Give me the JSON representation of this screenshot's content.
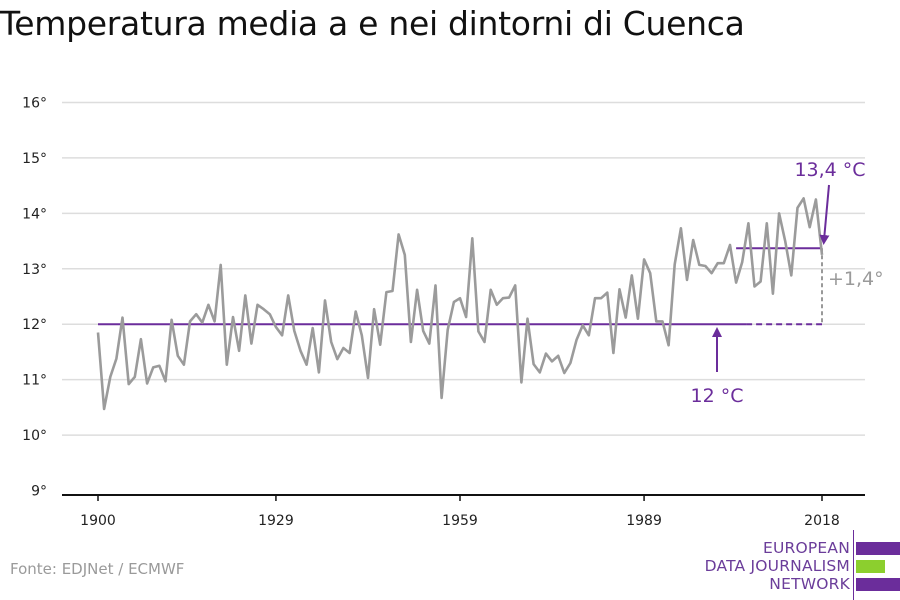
{
  "title": "Temperatura media a e nei dintorni di Cuenca",
  "source": "Fonte: EDJNet / ECMWF",
  "logo": {
    "line1": "EUROPEAN",
    "line2": "DATA JOURNALISM",
    "line3": "NETWORK"
  },
  "colors": {
    "line": "#9b9b9b",
    "accent": "#6b2d9b",
    "grid": "#dddddd",
    "axis": "#111111",
    "logo_green": "#8ccf2e"
  },
  "chart_data": {
    "type": "line",
    "title": "Temperatura media a e nei dintorni di Cuenca",
    "xlabel": "",
    "ylabel": "",
    "xlim": [
      1900,
      2018
    ],
    "ylim": [
      9,
      16
    ],
    "xticks": [
      1900,
      1929,
      1959,
      1989,
      2018
    ],
    "xtick_labels": [
      "1900",
      "1929",
      "1959",
      "1989",
      "2018"
    ],
    "yticks": [
      9,
      10,
      11,
      12,
      13,
      14,
      15,
      16
    ],
    "ytick_labels": [
      "9°",
      "10°",
      "11°",
      "12°",
      "13°",
      "14°",
      "15°",
      "16°"
    ],
    "grid": true,
    "series": [
      {
        "values": [
          [
            1900,
            11.85
          ],
          [
            1901,
            10.47
          ],
          [
            1902,
            11.05
          ],
          [
            1903,
            11.38
          ],
          [
            1904,
            12.12
          ],
          [
            1905,
            10.92
          ],
          [
            1906,
            11.05
          ],
          [
            1907,
            11.73
          ],
          [
            1908,
            10.93
          ],
          [
            1909,
            11.22
          ],
          [
            1910,
            11.25
          ],
          [
            1911,
            10.97
          ],
          [
            1912,
            12.08
          ],
          [
            1913,
            11.43
          ],
          [
            1914,
            11.27
          ],
          [
            1915,
            12.05
          ],
          [
            1916,
            12.18
          ],
          [
            1917,
            12.03
          ],
          [
            1918,
            12.35
          ],
          [
            1919,
            12.05
          ],
          [
            1920,
            13.07
          ],
          [
            1921,
            11.27
          ],
          [
            1922,
            12.13
          ],
          [
            1923,
            11.52
          ],
          [
            1924,
            12.52
          ],
          [
            1925,
            11.65
          ],
          [
            1926,
            12.35
          ],
          [
            1927,
            12.27
          ],
          [
            1928,
            12.18
          ],
          [
            1929,
            11.95
          ],
          [
            1930,
            11.8
          ],
          [
            1931,
            12.52
          ],
          [
            1932,
            11.88
          ],
          [
            1933,
            11.52
          ],
          [
            1934,
            11.27
          ],
          [
            1935,
            11.93
          ],
          [
            1936,
            11.13
          ],
          [
            1937,
            12.43
          ],
          [
            1938,
            11.68
          ],
          [
            1939,
            11.37
          ],
          [
            1940,
            11.57
          ],
          [
            1941,
            11.48
          ],
          [
            1942,
            12.23
          ],
          [
            1943,
            11.8
          ],
          [
            1944,
            11.03
          ],
          [
            1945,
            12.27
          ],
          [
            1946,
            11.63
          ],
          [
            1947,
            12.58
          ],
          [
            1948,
            12.6
          ],
          [
            1949,
            13.62
          ],
          [
            1950,
            13.25
          ],
          [
            1951,
            11.68
          ],
          [
            1952,
            12.62
          ],
          [
            1953,
            11.88
          ],
          [
            1954,
            11.65
          ],
          [
            1955,
            12.7
          ],
          [
            1956,
            10.67
          ],
          [
            1957,
            11.9
          ],
          [
            1958,
            12.4
          ],
          [
            1959,
            12.47
          ],
          [
            1960,
            12.13
          ],
          [
            1961,
            13.55
          ],
          [
            1962,
            11.87
          ],
          [
            1963,
            11.68
          ],
          [
            1964,
            12.62
          ],
          [
            1965,
            12.35
          ],
          [
            1966,
            12.47
          ],
          [
            1967,
            12.48
          ],
          [
            1968,
            12.7
          ],
          [
            1969,
            10.95
          ],
          [
            1970,
            12.1
          ],
          [
            1971,
            11.28
          ],
          [
            1972,
            11.13
          ],
          [
            1973,
            11.47
          ],
          [
            1974,
            11.33
          ],
          [
            1975,
            11.43
          ],
          [
            1976,
            11.12
          ],
          [
            1977,
            11.3
          ],
          [
            1978,
            11.72
          ],
          [
            1979,
            11.98
          ],
          [
            1980,
            11.8
          ],
          [
            1981,
            12.47
          ],
          [
            1982,
            12.47
          ],
          [
            1983,
            12.57
          ],
          [
            1984,
            11.48
          ],
          [
            1985,
            12.63
          ],
          [
            1986,
            12.12
          ],
          [
            1987,
            12.88
          ],
          [
            1988,
            12.1
          ],
          [
            1989,
            13.17
          ],
          [
            1990,
            12.92
          ],
          [
            1991,
            12.05
          ],
          [
            1992,
            12.05
          ],
          [
            1993,
            11.62
          ],
          [
            1994,
            13.08
          ],
          [
            1995,
            13.73
          ],
          [
            1996,
            12.8
          ],
          [
            1997,
            13.52
          ],
          [
            1998,
            13.07
          ],
          [
            1999,
            13.05
          ],
          [
            2000,
            12.92
          ],
          [
            2001,
            13.1
          ],
          [
            2002,
            13.1
          ],
          [
            2003,
            13.43
          ],
          [
            2004,
            12.75
          ],
          [
            2005,
            13.12
          ],
          [
            2006,
            13.82
          ],
          [
            2007,
            12.68
          ],
          [
            2008,
            12.77
          ],
          [
            2009,
            13.82
          ],
          [
            2010,
            12.55
          ],
          [
            2011,
            14.0
          ],
          [
            2012,
            13.5
          ],
          [
            2013,
            12.88
          ],
          [
            2014,
            14.1
          ],
          [
            2015,
            14.27
          ],
          [
            2016,
            13.75
          ],
          [
            2017,
            14.25
          ],
          [
            2018,
            13.25
          ]
        ]
      }
    ],
    "reference_lines": [
      {
        "x_start": 1900,
        "x_end": 2018,
        "y": 12.0,
        "dashed_from": 2004,
        "label": "12 °C"
      },
      {
        "x_start": 2004,
        "x_end": 2018,
        "y": 13.37,
        "label": "13,4 °C"
      }
    ],
    "annotations": [
      {
        "text": "13,4 °C"
      },
      {
        "text": "12 °C"
      },
      {
        "text": "+1,4°"
      }
    ]
  }
}
